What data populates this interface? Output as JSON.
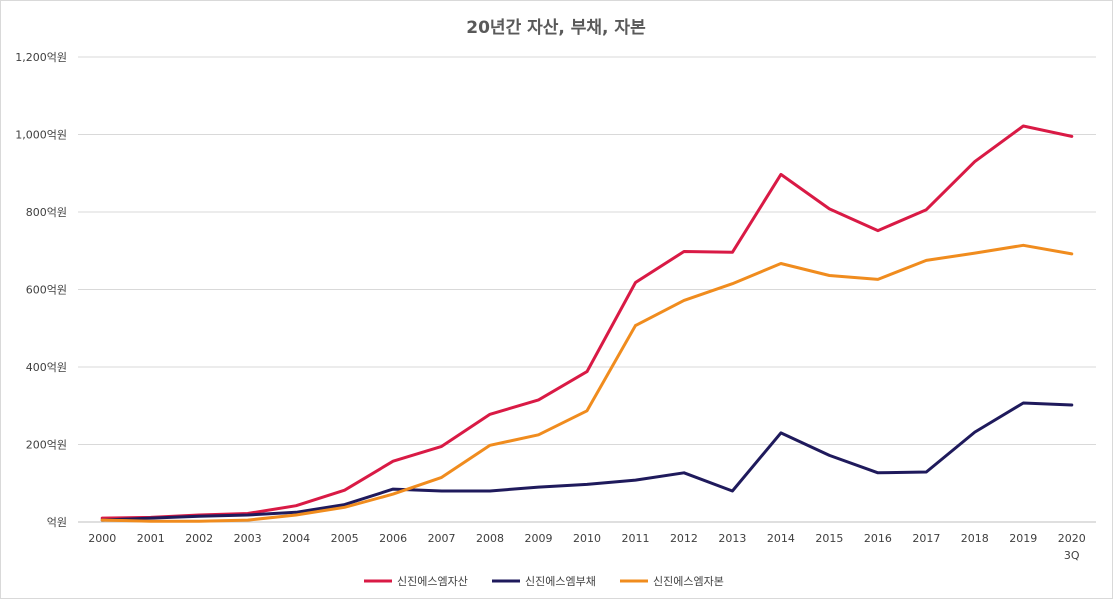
{
  "chart_data": {
    "type": "line",
    "title": "20년간 자산, 부채, 자본",
    "xlabel": "",
    "ylabel": "",
    "categories": [
      "2000",
      "2001",
      "2002",
      "2003",
      "2004",
      "2005",
      "2006",
      "2007",
      "2008",
      "2009",
      "2010",
      "2011",
      "2012",
      "2013",
      "2014",
      "2015",
      "2016",
      "2017",
      "2018",
      "2019",
      "2020\n3Q"
    ],
    "ylim": [
      0,
      1200
    ],
    "yticks": [
      0,
      200,
      400,
      600,
      800,
      1000,
      1200
    ],
    "ytick_labels": [
      "억원",
      "200억원",
      "400억원",
      "600억원",
      "800억원",
      "1,000억원",
      "1,200억원"
    ],
    "grid": true,
    "legend": "bottom",
    "series": [
      {
        "name": "신진에스엠자산",
        "color": "#d91a45",
        "values": [
          10,
          12,
          18,
          22,
          42,
          82,
          157,
          195,
          278,
          315,
          388,
          618,
          698,
          696,
          897,
          808,
          752,
          806,
          930,
          1022,
          995
        ]
      },
      {
        "name": "신진에스엠부채",
        "color": "#1f1a5c",
        "values": [
          5,
          10,
          15,
          18,
          25,
          45,
          85,
          80,
          80,
          90,
          97,
          108,
          127,
          80,
          230,
          172,
          127,
          129,
          232,
          307,
          302
        ]
      },
      {
        "name": "신진에스엠자본",
        "color": "#f08c1e",
        "values": [
          5,
          2,
          2,
          5,
          18,
          38,
          72,
          115,
          198,
          225,
          287,
          507,
          572,
          615,
          667,
          636,
          626,
          675,
          694,
          714,
          692
        ]
      }
    ]
  }
}
